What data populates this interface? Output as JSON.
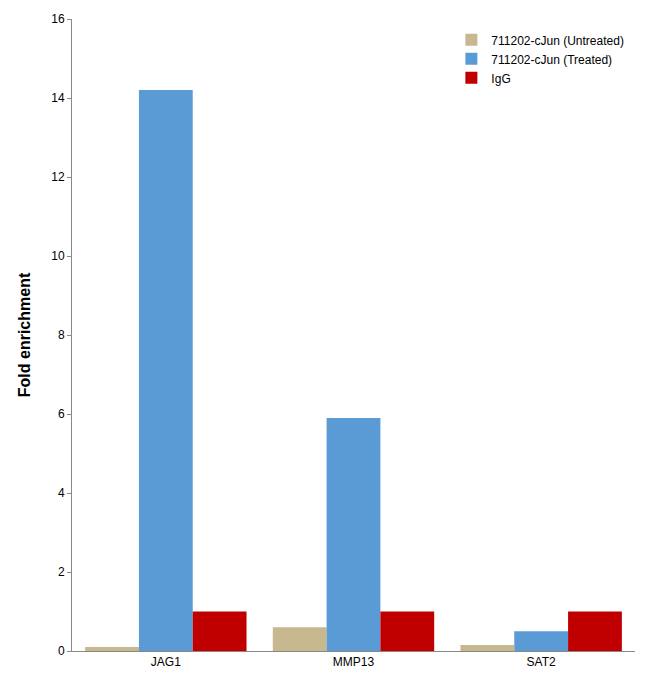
{
  "chart_data": {
    "type": "bar",
    "y_label": "Fold enrichment",
    "categories": [
      "JAG1",
      "MMP13",
      "SAT2"
    ],
    "series": [
      {
        "name": "711202-cJun (Untreated)",
        "color": "#c8b890",
        "values": [
          0.1,
          0.6,
          0.15
        ]
      },
      {
        "name": "711202-cJun (Treated)",
        "color": "#5b9bd5",
        "values": [
          14.2,
          5.9,
          0.5
        ]
      },
      {
        "name": "IgG",
        "color": "#c00000",
        "values": [
          1,
          1,
          1
        ]
      }
    ],
    "ylim": [
      0,
      16
    ],
    "yticks": [
      0,
      2,
      4,
      6,
      8,
      10,
      12,
      14,
      16
    ],
    "grid": false,
    "legend": "top-right"
  }
}
